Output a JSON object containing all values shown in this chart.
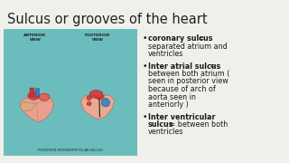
{
  "title": "Sulcus or grooves of the heart",
  "title_fontsize": 10.5,
  "title_color": "#222222",
  "background_color": "#f0f0eb",
  "image_bg": "#6bbcbc",
  "bullet_points": [
    {
      "lines": [
        {
          "bold": "coronary sulcus",
          "normal": " ="
        },
        {
          "bold": "",
          "normal": "separated atrium and"
        },
        {
          "bold": "",
          "normal": "ventricles"
        }
      ]
    },
    {
      "lines": [
        {
          "bold": "Inter atrial sulcus",
          "normal": "="
        },
        {
          "bold": "",
          "normal": "between both atrium ("
        },
        {
          "bold": "",
          "normal": "seen in posterior view"
        },
        {
          "bold": "",
          "normal": "because of arch of"
        },
        {
          "bold": "",
          "normal": "aorta seen in"
        },
        {
          "bold": "",
          "normal": "anteriorly )"
        }
      ]
    },
    {
      "lines": [
        {
          "bold": "Inter ventricular",
          "normal": ""
        },
        {
          "bold": "sulcus",
          "normal": " = between both"
        },
        {
          "bold": "",
          "normal": "ventricles"
        }
      ]
    }
  ],
  "bullet_fontsize": 5.8,
  "text_color": "#1a1a1a"
}
